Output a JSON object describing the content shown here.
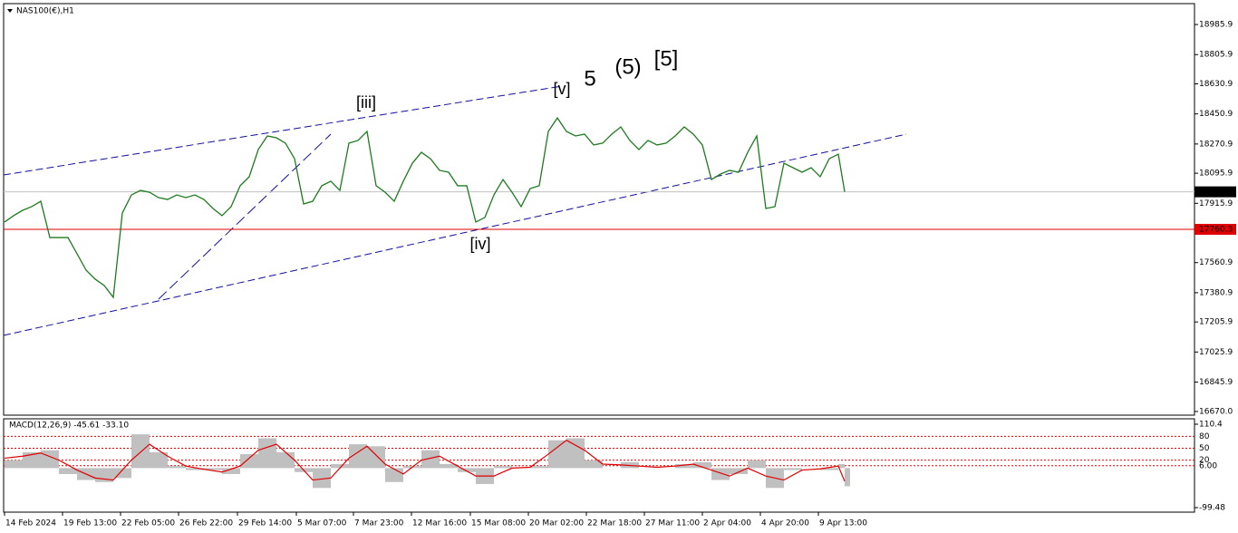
{
  "chart_data": [
    {
      "type": "line",
      "title": "NAS100(€),H1",
      "color": "#1f7a1f",
      "x": [
        0,
        10,
        20,
        30,
        40,
        50,
        60,
        70,
        80,
        90,
        100,
        110,
        120,
        130,
        140,
        150,
        160,
        170,
        180,
        190,
        200,
        210,
        220,
        230,
        240,
        250,
        260,
        270,
        280,
        290,
        300,
        310,
        320,
        330,
        340,
        350,
        360,
        370,
        380,
        390,
        400,
        410,
        420,
        430,
        440,
        450,
        460,
        470,
        480,
        490,
        500,
        510,
        520,
        530,
        540,
        550,
        560,
        570,
        580,
        590,
        600,
        610,
        620,
        630,
        640,
        650,
        660,
        670,
        680,
        690,
        700,
        710,
        720,
        730,
        740,
        750,
        760,
        770,
        780,
        790,
        800,
        810,
        820,
        830,
        840,
        850,
        860,
        870,
        880,
        890,
        900,
        910,
        920,
        927
      ],
      "values": [
        17804,
        17842,
        17874,
        17896,
        17928,
        17711,
        17711,
        17711,
        17614,
        17516,
        17462,
        17424,
        17353,
        17858,
        17966,
        17993,
        17982,
        17950,
        17939,
        17966,
        17950,
        17966,
        17939,
        17885,
        17842,
        17896,
        18021,
        18075,
        18238,
        18319,
        18308,
        18276,
        18183,
        17912,
        17928,
        18021,
        18048,
        17993,
        18276,
        18292,
        18346,
        18021,
        17982,
        17928,
        18048,
        18156,
        18221,
        18183,
        18113,
        18102,
        18021,
        18021,
        17804,
        17831,
        17966,
        18058,
        17982,
        17896,
        18004,
        18021,
        18346,
        18427,
        18346,
        18319,
        18330,
        18265,
        18276,
        18330,
        18373,
        18292,
        18238,
        18292,
        18265,
        18276,
        18319,
        18373,
        18330,
        18265,
        18058,
        18091,
        18113,
        18102,
        18221,
        18319,
        17885,
        17896,
        18156,
        18129,
        18102,
        18129,
        18075,
        18183,
        18210,
        17984.6
      ],
      "xlim": [
        -1,
        1313
      ],
      "xticks": [
        {
          "value": 0,
          "label": "14 Feb 2024"
        },
        {
          "value": 64,
          "label": "19 Feb 13:00"
        },
        {
          "value": 128,
          "label": "22 Feb 05:00"
        },
        {
          "value": 192,
          "label": "26 Feb 22:00"
        },
        {
          "value": 257,
          "label": "29 Feb 14:00"
        },
        {
          "value": 322,
          "label": "5 Mar 07:00"
        },
        {
          "value": 385,
          "label": "7 Mar 23:00"
        },
        {
          "value": 449,
          "label": "12 Mar 16:00"
        },
        {
          "value": 514,
          "label": "15 Mar 08:00"
        },
        {
          "value": 578,
          "label": "20 Mar 02:00"
        },
        {
          "value": 642,
          "label": "22 Mar 18:00"
        },
        {
          "value": 706,
          "label": "27 Mar 11:00"
        },
        {
          "value": 770,
          "label": "2 Apr 04:00"
        },
        {
          "value": 834,
          "label": "4 Apr 20:00"
        },
        {
          "value": 898,
          "label": "9 Apr 13:00"
        }
      ],
      "ylim": [
        16648,
        19111
      ],
      "yticks": [
        18985.9,
        18805.9,
        18630.9,
        18450.9,
        18270.9,
        18095.9,
        17915.9,
        17560.9,
        17380.9,
        17205.9,
        17025.9,
        16845.9,
        {
          "value": 16670,
          "label": "16670.0"
        }
      ],
      "level": {
        "value": 17760.3,
        "color": "#e00000"
      },
      "current_price": {
        "value": 17984.6,
        "color": "#000000"
      },
      "annotations": [
        {
          "text": "[iii]",
          "color": "#2a8a2a"
        },
        {
          "text": "[iv]",
          "color": "#2a8a2a"
        },
        {
          "text": "[v]",
          "color": "#2a8a2a"
        },
        {
          "text": "5",
          "color": "#1010e0"
        },
        {
          "text": "(5)",
          "color": "#e01010"
        },
        {
          "text": "[5]",
          "color": "#000000"
        }
      ]
    },
    {
      "type": "macd",
      "title": "MACD(12,26,9) -45.61 -33.10",
      "x": [
        0,
        20,
        40,
        60,
        80,
        100,
        120,
        140,
        160,
        180,
        200,
        220,
        240,
        260,
        280,
        300,
        320,
        340,
        360,
        380,
        400,
        420,
        440,
        460,
        480,
        500,
        520,
        540,
        560,
        580,
        600,
        620,
        640,
        660,
        680,
        700,
        720,
        740,
        760,
        780,
        800,
        820,
        840,
        860,
        880,
        900,
        920,
        927
      ],
      "series": [
        {
          "color": "#c0c0c0",
          "values": [
            20,
            40,
            45,
            -15,
            -30,
            -35,
            -25,
            85,
            40,
            5,
            -5,
            -5,
            -15,
            35,
            75,
            40,
            -10,
            -50,
            10,
            60,
            55,
            -35,
            5,
            45,
            10,
            -10,
            -40,
            5,
            0,
            5,
            70,
            75,
            20,
            0,
            15,
            0,
            0,
            10,
            15,
            -30,
            -15,
            20,
            -50,
            -5,
            0,
            -5,
            10,
            -45.61
          ]
        },
        {
          "color": "#e00000",
          "values": [
            25,
            30,
            38,
            20,
            -5,
            -25,
            -30,
            20,
            60,
            30,
            5,
            -3,
            -10,
            5,
            45,
            60,
            20,
            -30,
            -25,
            25,
            55,
            10,
            -15,
            20,
            30,
            5,
            -20,
            -20,
            0,
            2,
            35,
            70,
            45,
            10,
            8,
            5,
            2,
            5,
            10,
            -5,
            -20,
            0,
            -20,
            -30,
            -5,
            -2,
            5,
            -33.1
          ]
        }
      ],
      "xlim": [
        -1,
        1313
      ],
      "ylim": [
        -99.48,
        110.4
      ],
      "yticks": [
        110.4,
        80,
        50,
        {
          "value": 6,
          "label": "6.00"
        },
        20,
        -99.48
      ]
    }
  ]
}
